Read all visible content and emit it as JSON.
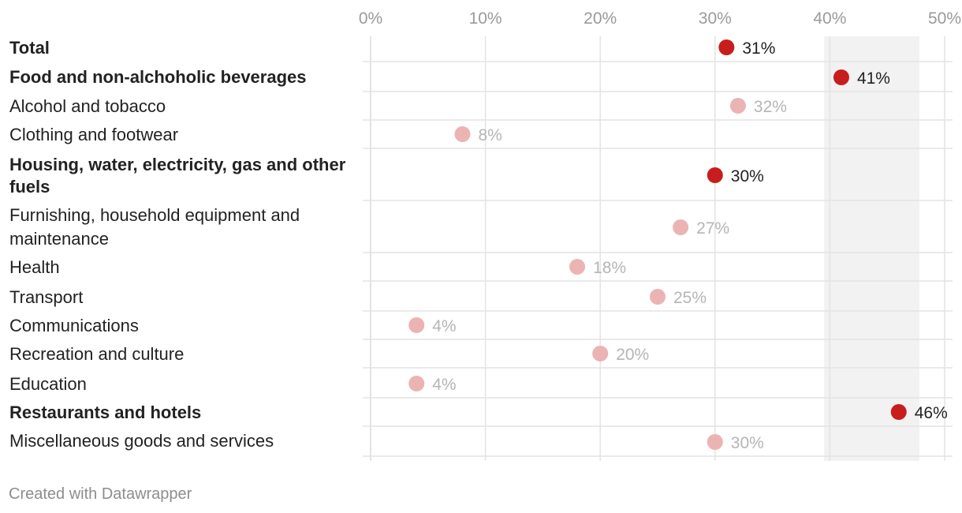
{
  "chart_data": {
    "type": "scatter",
    "title": "",
    "xlabel": "",
    "ylabel": "",
    "xlim": [
      0,
      50
    ],
    "x_ticks": [
      "0%",
      "10%",
      "20%",
      "30%",
      "40%",
      "50%"
    ],
    "highlight_band": [
      39.5,
      47.8
    ],
    "categories": [
      {
        "label": "Total",
        "value": 31,
        "display": "31%",
        "highlight": true
      },
      {
        "label": "Food and non-alchoholic beverages",
        "value": 41,
        "display": "41%",
        "highlight": true
      },
      {
        "label": "Alcohol and tobacco",
        "value": 32,
        "display": "32%",
        "highlight": false
      },
      {
        "label": "Clothing and footwear",
        "value": 8,
        "display": "8%",
        "highlight": false
      },
      {
        "label": "Housing, water, electricity, gas and other fuels",
        "value": 30,
        "display": "30%",
        "highlight": true
      },
      {
        "label": "Furnishing, household equipment and maintenance",
        "value": 27,
        "display": "27%",
        "highlight": false
      },
      {
        "label": "Health",
        "value": 18,
        "display": "18%",
        "highlight": false
      },
      {
        "label": "Transport",
        "value": 25,
        "display": "25%",
        "highlight": false
      },
      {
        "label": "Communications",
        "value": 4,
        "display": "4%",
        "highlight": false
      },
      {
        "label": "Recreation and culture",
        "value": 20,
        "display": "20%",
        "highlight": false
      },
      {
        "label": "Education",
        "value": 4,
        "display": "4%",
        "highlight": false
      },
      {
        "label": "Restaurants and hotels",
        "value": 46,
        "display": "46%",
        "highlight": true
      },
      {
        "label": "Miscellaneous goods and services",
        "value": 30,
        "display": "30%",
        "highlight": false
      }
    ]
  },
  "colors": {
    "highlight_dot": "#c71e1d",
    "faded_dot": "#ebb4b3",
    "highlight_label": "#222222",
    "faded_label": "#b5b5b5",
    "grid": "#e3e3e3",
    "axis_text": "#9a9a9a",
    "band": "#f2f2f2"
  },
  "footer": {
    "credit": "Created with Datawrapper"
  }
}
